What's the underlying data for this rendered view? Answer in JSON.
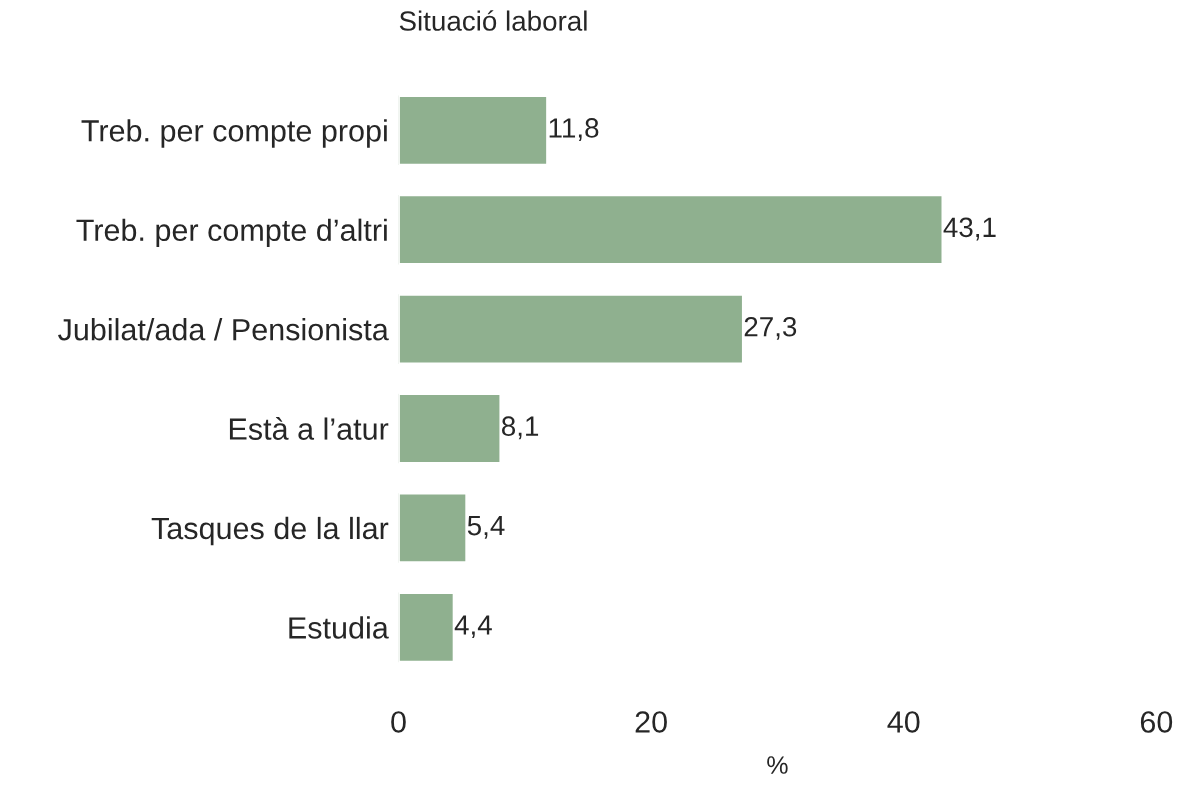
{
  "chart_data": {
    "type": "bar",
    "orientation": "horizontal",
    "title": "Situació laboral",
    "xlabel": "%",
    "categories": [
      "Treb. per compte propi",
      "Treb. per compte d’altri",
      "Jubilat/ada / Pensionista",
      "Està a l’atur",
      "Tasques de la llar",
      "Estudia"
    ],
    "values": [
      11.8,
      43.1,
      27.3,
      8.1,
      5.4,
      4.4
    ],
    "value_labels": [
      "11,8",
      "43,1",
      "27,3",
      "8,1",
      "5,4",
      "4,4"
    ],
    "color": "#8fb08f",
    "xlim": [
      0,
      60
    ],
    "xticks": [
      0,
      20,
      40,
      60
    ],
    "grid": false,
    "legend": false
  }
}
